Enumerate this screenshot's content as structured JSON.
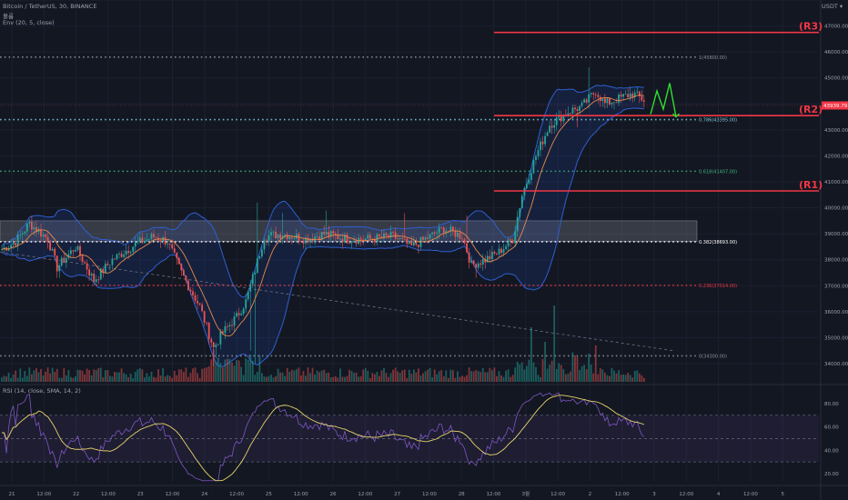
{
  "header": {
    "symbol_line": "Bitcoin / TetherUS, 30, BINANCE",
    "sub_line": "볼륨",
    "env_line": "Env (20, 5, close)",
    "rsi_line": "RSI (14, close, SMA, 14, 2)",
    "currency": "USDT ▾"
  },
  "colors": {
    "background": "#131722",
    "up_candle": "#26a69a",
    "down_candle": "#ef5350",
    "band": "#2f5fd0",
    "resistance": "#f23645",
    "rsi_line": "#7e57c2",
    "rsi_ma": "#e6d46b",
    "projection": "#2ee02e"
  },
  "chart_data": {
    "type": "candlestick",
    "price_axis": {
      "range": [
        33300,
        48000
      ],
      "ticks": [
        34000,
        35000,
        36000,
        37000,
        38000,
        39000,
        40000,
        41000,
        42000,
        43000,
        44000,
        45000,
        46000,
        47000,
        48000
      ],
      "tick_labels": [
        "34000.00",
        "35000.00",
        "36000.00",
        "37000.00",
        "38000.00",
        "39000.00",
        "40000.00",
        "41000.00",
        "42000.00",
        "43000.00",
        "44000.00",
        "45000.00",
        "46000.00",
        "47000.00",
        "48000.00"
      ]
    },
    "time_axis": {
      "labels": [
        "21",
        "12:00",
        "22",
        "12:00",
        "23",
        "12:00",
        "24",
        "12:00",
        "25",
        "12:00",
        "26",
        "12:00",
        "27",
        "12:00",
        "28",
        "12:00",
        "3월",
        "12:00",
        "2",
        "12:00",
        "3",
        "12:00",
        "4",
        "12:00",
        "5"
      ]
    },
    "current_price_label": "43939.79",
    "resistance_levels": [
      {
        "label": "(R3)",
        "price": 46750
      },
      {
        "label": "(R2)",
        "price": 43550
      },
      {
        "label": "(R1)",
        "price": 40650
      }
    ],
    "fib_levels": [
      {
        "label": "1(45800.00)",
        "price": 45800,
        "color": "#8b8f99"
      },
      {
        "label": "0.786(43395.00)",
        "price": 43395,
        "color": "#7fc6d8"
      },
      {
        "label": "0.618(41407.00)",
        "price": 41407,
        "color": "#3fb27f"
      },
      {
        "label": "0.382(38693.00)",
        "price": 38693,
        "color": "#ffffff"
      },
      {
        "label": "0.236(37014.00)",
        "price": 37014,
        "color": "#f23645"
      },
      {
        "label": "0(34300.00)",
        "price": 34300,
        "color": "#8b8f99"
      }
    ],
    "support_zone": [
      38700,
      39500
    ],
    "anchors": [
      [
        0,
        38400
      ],
      [
        6,
        38700
      ],
      [
        12,
        39400
      ],
      [
        20,
        38800
      ],
      [
        24,
        37700
      ],
      [
        32,
        38500
      ],
      [
        40,
        37200
      ],
      [
        48,
        38000
      ],
      [
        58,
        38600
      ],
      [
        66,
        38900
      ],
      [
        72,
        38700
      ],
      [
        78,
        37500
      ],
      [
        86,
        36200
      ],
      [
        92,
        34600
      ],
      [
        96,
        35200
      ],
      [
        102,
        35800
      ],
      [
        106,
        36400
      ],
      [
        110,
        37600
      ],
      [
        114,
        38900
      ],
      [
        122,
        39000
      ],
      [
        132,
        38800
      ],
      [
        140,
        39000
      ],
      [
        150,
        38800
      ],
      [
        160,
        38800
      ],
      [
        170,
        38900
      ],
      [
        178,
        38500
      ],
      [
        186,
        38900
      ],
      [
        192,
        39200
      ],
      [
        200,
        38900
      ],
      [
        204,
        37800
      ],
      [
        210,
        38000
      ],
      [
        216,
        38300
      ],
      [
        222,
        38800
      ],
      [
        226,
        40500
      ],
      [
        232,
        42000
      ],
      [
        238,
        43200
      ],
      [
        246,
        43700
      ],
      [
        252,
        43900
      ],
      [
        258,
        44500
      ],
      [
        262,
        44000
      ],
      [
        268,
        44200
      ],
      [
        274,
        44400
      ],
      [
        280,
        44100
      ]
    ],
    "projection_path": [
      [
        43600,
        0
      ],
      [
        44500,
        1
      ],
      [
        43800,
        2
      ],
      [
        44800,
        3
      ],
      [
        43500,
        4
      ]
    ],
    "rsi": {
      "ticks": [
        20,
        40,
        60,
        80
      ],
      "tick_labels": [
        "20.00",
        "40.00",
        "60.00",
        "80.00"
      ],
      "upper": 70,
      "lower": 30
    }
  }
}
